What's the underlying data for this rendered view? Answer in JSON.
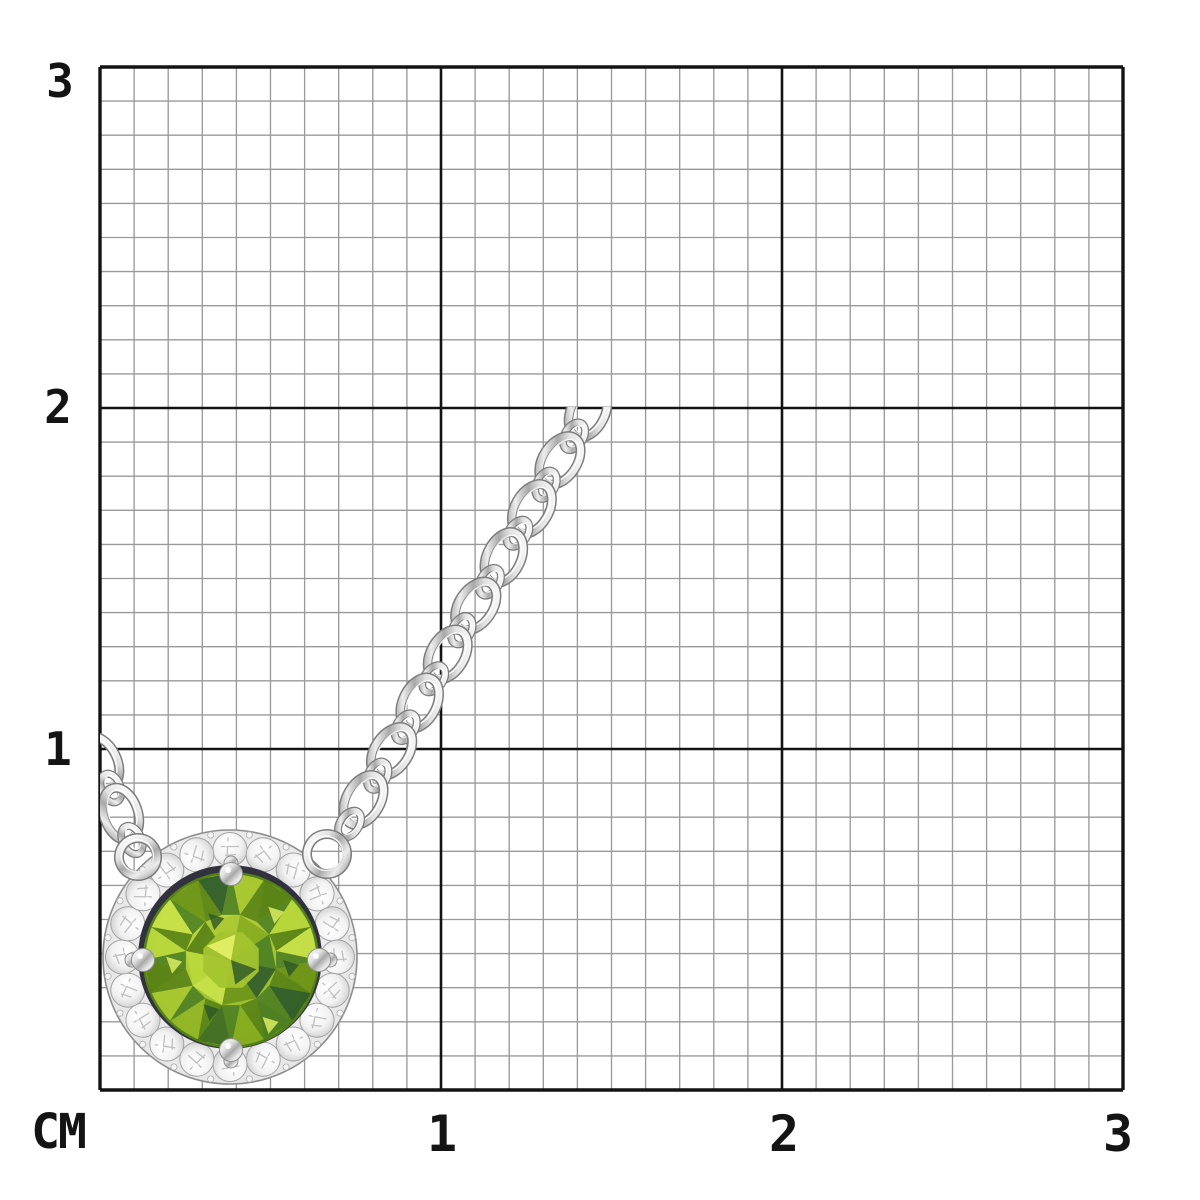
{
  "ruler": {
    "unit_label": "CM",
    "x_axis": {
      "labels": [
        "1",
        "2",
        "3"
      ]
    },
    "y_axis": {
      "labels": [
        "3",
        "2",
        "1"
      ]
    },
    "cm_count": 3,
    "minor_divisions_per_cm": 10
  },
  "colors": {
    "background": "#ffffff",
    "grid_minor": "#9a9a9a",
    "grid_major": "#131313",
    "label_text": "#141414",
    "metal_light": "#ffffff",
    "metal_mid": "#cfcfcf",
    "metal_dark": "#8a8a8a",
    "metal_outline": "#7d7d7d",
    "halo_base": "#e9e9e9",
    "diamond_white": "#ffffff",
    "diamond_shade": "#c0c0c0",
    "bezel_shadow": "#32323e",
    "gem_base_light": "#c6de44",
    "gem_base_mid": "#9dc030",
    "gem_base_dark": "#5c8517",
    "gem_rim": "#4e7a16",
    "gem_palette": [
      "#c9e24a",
      "#a8c832",
      "#86ab20",
      "#6d9418",
      "#557f15",
      "#3f6b25",
      "#2e5a2b",
      "#b9d83c",
      "#93b626",
      "#4a7d23"
    ],
    "gem_sparkle_light": "#e4f268",
    "gem_sparkle_dark": "#2c5527"
  }
}
